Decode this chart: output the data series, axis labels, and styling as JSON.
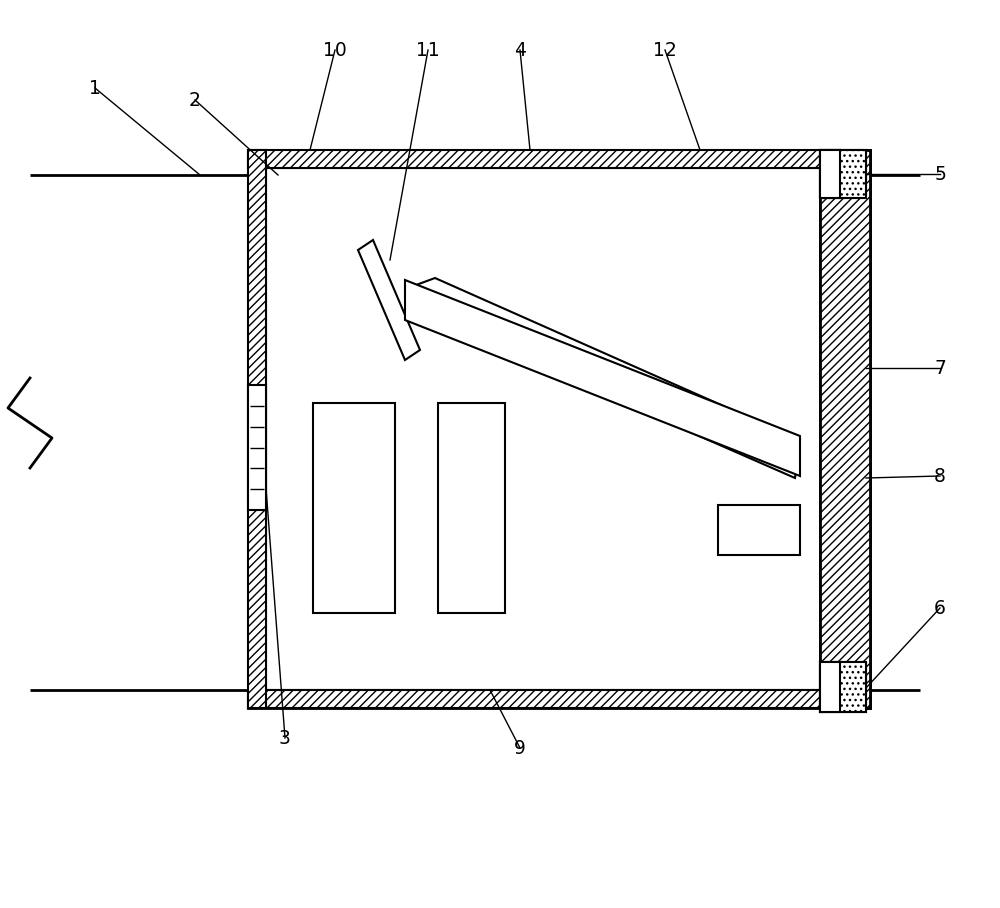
{
  "bg_color": "#ffffff",
  "line_color": "#000000",
  "figsize": [
    10.0,
    9.08
  ],
  "dpi": 100,
  "lw_thick": 2.0,
  "lw_med": 1.5,
  "lw_thin": 1.0
}
